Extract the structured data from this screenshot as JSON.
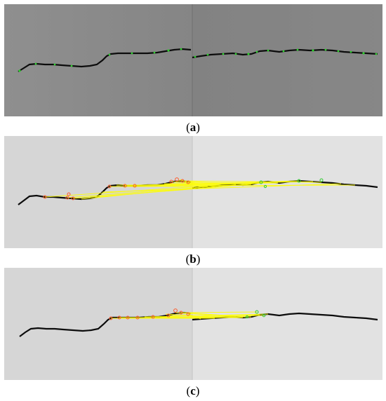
{
  "figure": {
    "panels": [
      {
        "id": "a",
        "caption_open": "(",
        "caption_letter": "a",
        "caption_close": ")"
      },
      {
        "id": "b",
        "caption_open": "(",
        "caption_letter": "b",
        "caption_close": ")"
      },
      {
        "id": "c",
        "caption_open": "(",
        "caption_letter": "c",
        "caption_close": ")"
      }
    ]
  },
  "colors": {
    "panel_a_bg": "#8a8a8a",
    "panel_bc_bg": "#d8d8d8",
    "crack": "#111111",
    "keypoint_green": "#2ecc2e",
    "keypoint_red": "#ff5a2a",
    "match_line": "#ffff00"
  }
}
